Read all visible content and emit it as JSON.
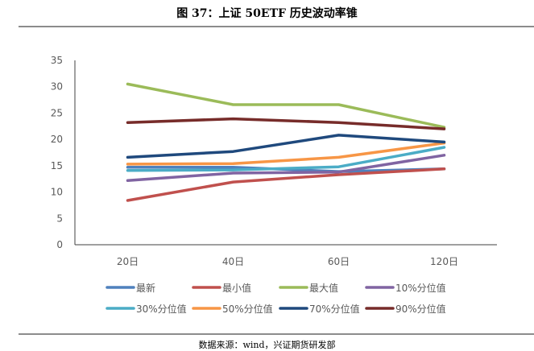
{
  "title": "图 37：上证 50ETF 历史波动率锥",
  "source": "数据来源：wind，兴证期货研发部",
  "chart_data": {
    "type": "line",
    "title": "图 37：上证 50ETF 历史波动率锥",
    "xlabel": "",
    "ylabel": "",
    "categories": [
      "20日",
      "40日",
      "60日",
      "120日"
    ],
    "ylim": [
      0,
      35
    ],
    "yticks": [
      0,
      5,
      10,
      15,
      20,
      25,
      30,
      35
    ],
    "grid": false,
    "legend_position": "bottom",
    "series": [
      {
        "name": "最新",
        "color": "#4f81bd",
        "values": [
          14.7,
          14.7,
          13.9,
          14.4
        ]
      },
      {
        "name": "最小值",
        "color": "#c0504d",
        "values": [
          8.4,
          11.9,
          13.3,
          14.4
        ]
      },
      {
        "name": "最大值",
        "color": "#9bbb59",
        "values": [
          30.5,
          26.6,
          26.6,
          22.3
        ]
      },
      {
        "name": "10%分位值",
        "color": "#8064a2",
        "values": [
          12.2,
          13.6,
          13.8,
          17.0
        ]
      },
      {
        "name": "30%分位值",
        "color": "#4bacc6",
        "values": [
          14.1,
          14.2,
          14.8,
          18.5
        ]
      },
      {
        "name": "50%分位值",
        "color": "#f79646",
        "values": [
          15.3,
          15.4,
          16.6,
          19.3
        ]
      },
      {
        "name": "70%分位值",
        "color": "#1f497d",
        "values": [
          16.6,
          17.7,
          20.8,
          19.5
        ]
      },
      {
        "name": "90%分位值",
        "color": "#772c2a",
        "values": [
          23.2,
          23.9,
          23.2,
          22.0
        ]
      }
    ]
  }
}
